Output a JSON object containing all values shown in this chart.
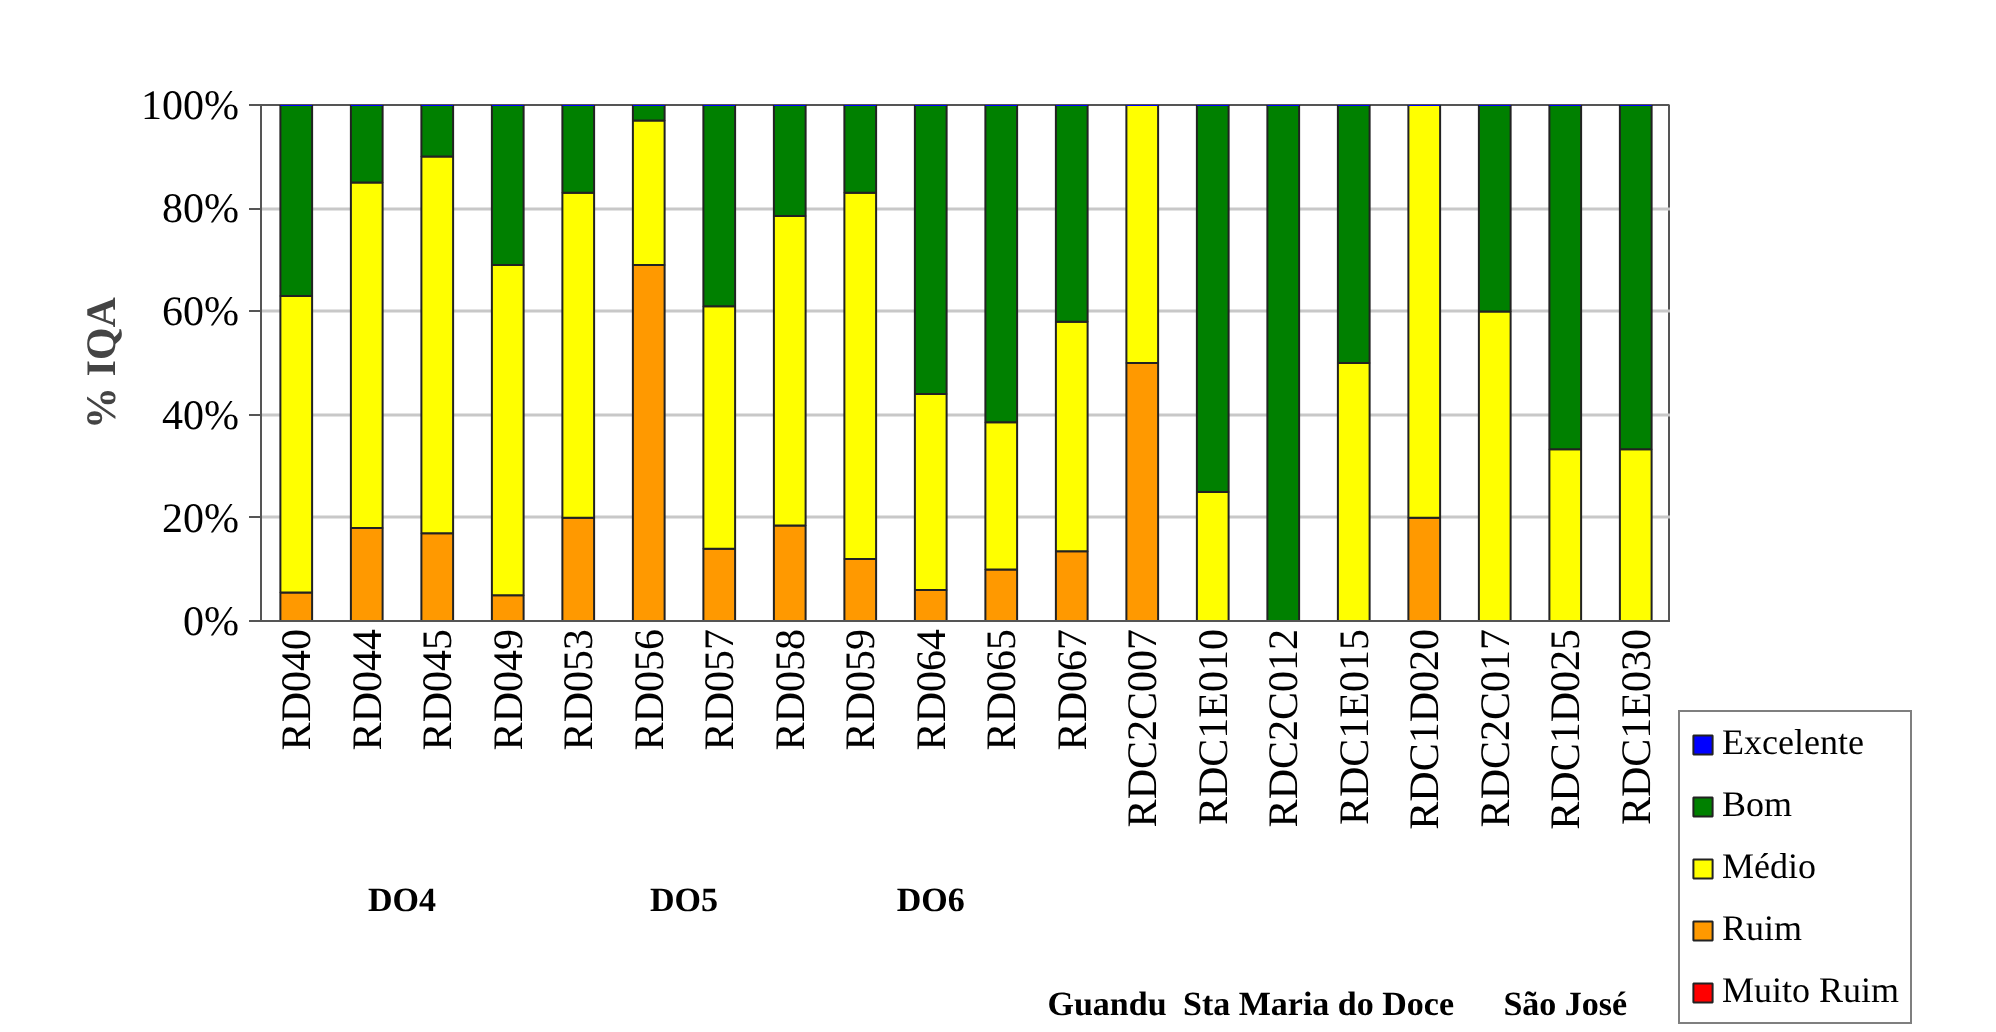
{
  "chart_data": {
    "type": "bar",
    "stacked": true,
    "ylabel": "% IQA",
    "categories": [
      "RD040",
      "RD044",
      "RD045",
      "RD049",
      "RD053",
      "RD056",
      "RD057",
      "RD058",
      "RD059",
      "RD064",
      "RD065",
      "RD067",
      "RDC2C007",
      "RDC1E010",
      "RDC2C012",
      "RDC1E015",
      "RDC1D020",
      "RDC2C017",
      "RDC1D025",
      "RDC1E030"
    ],
    "series": [
      {
        "name": "Muito Ruim",
        "color": "#ff0000",
        "values": [
          0,
          0,
          0,
          0,
          0,
          0,
          0,
          0,
          0,
          0,
          0,
          0,
          0,
          0,
          0,
          0,
          0,
          0,
          0,
          0
        ]
      },
      {
        "name": "Ruim",
        "color": "#ff9900",
        "values": [
          5.5,
          18,
          17,
          5,
          20,
          69,
          14,
          18.5,
          12,
          6,
          10,
          13.5,
          50,
          0,
          0,
          0,
          20,
          0,
          0,
          0
        ]
      },
      {
        "name": "Médio",
        "color": "#ffff00",
        "values": [
          57.5,
          67,
          73,
          64,
          63,
          28,
          47,
          60,
          71,
          38,
          28.5,
          44.5,
          50,
          25,
          0,
          50,
          80,
          60,
          33.3,
          33.3
        ]
      },
      {
        "name": "Bom",
        "color": "#008000",
        "values": [
          37,
          15,
          10,
          31,
          17,
          3,
          39,
          21.5,
          17,
          56,
          61.5,
          42,
          0,
          75,
          100,
          50,
          0,
          40,
          66.7,
          66.7
        ]
      },
      {
        "name": "Excelente",
        "color": "#0000ff",
        "values": [
          0,
          0,
          0,
          0,
          0,
          0,
          0,
          0,
          0,
          0,
          0,
          0,
          0,
          0,
          0,
          0,
          0,
          0,
          0,
          0
        ]
      }
    ],
    "ylim": [
      0,
      100
    ],
    "yticks": [
      {
        "value": 0,
        "label": "0%"
      },
      {
        "value": 20,
        "label": "20%"
      },
      {
        "value": 40,
        "label": "40%"
      },
      {
        "value": 60,
        "label": "60%"
      },
      {
        "value": 80,
        "label": "80%"
      },
      {
        "value": 100,
        "label": "100%"
      }
    ],
    "grid": "y",
    "legend": "bottom right",
    "annotations": [
      "DO4",
      "DO5",
      "DO6",
      "Guandu",
      "Sta Maria do Doce",
      "São José"
    ]
  }
}
